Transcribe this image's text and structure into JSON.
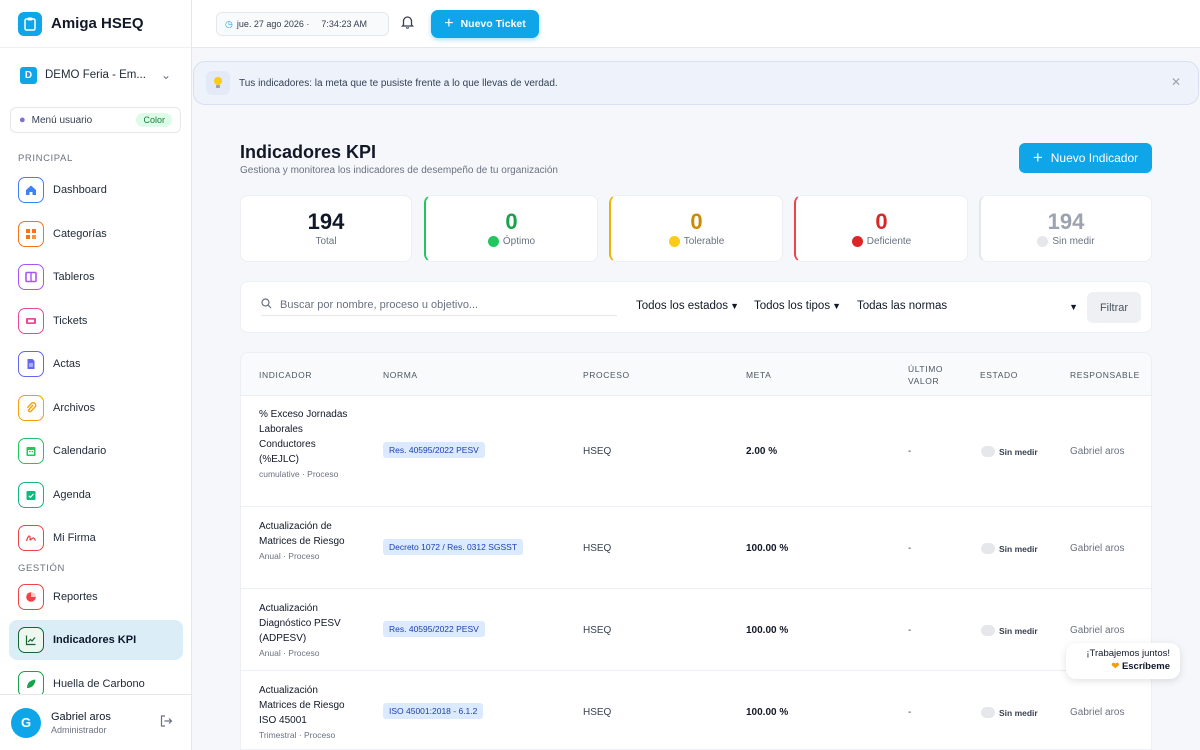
{
  "app": {
    "name": "Amiga HSEQ"
  },
  "org": {
    "badge": "D",
    "name": "DEMO Feria - Em..."
  },
  "user_menu": {
    "label": "Menú usuario",
    "badge": "Color"
  },
  "sidebar": {
    "sections": {
      "principal": "PRINCIPAL",
      "gestion": "GESTIÓN"
    },
    "items": [
      {
        "label": "Dashboard",
        "icon": "home-icon",
        "color": "#3b82f6"
      },
      {
        "label": "Categorías",
        "icon": "categories-icon",
        "color": "#f97316"
      },
      {
        "label": "Tableros",
        "icon": "board-icon",
        "color": "#a855f7"
      },
      {
        "label": "Tickets",
        "icon": "ticket-icon",
        "color": "#ec4899"
      },
      {
        "label": "Actas",
        "icon": "document-icon",
        "color": "#6366f1"
      },
      {
        "label": "Archivos",
        "icon": "paperclip-icon",
        "color": "#f59e0b"
      },
      {
        "label": "Calendario",
        "icon": "calendar-icon",
        "color": "#22c55e"
      },
      {
        "label": "Agenda",
        "icon": "agenda-icon",
        "color": "#10b981"
      },
      {
        "label": "Mi Firma",
        "icon": "signature-icon",
        "color": "#ef4444"
      },
      {
        "label": "Reportes",
        "icon": "pie-chart-icon",
        "color": "#ef4444"
      },
      {
        "label": "Indicadores KPI",
        "icon": "trend-chart-icon",
        "color": "#166534"
      },
      {
        "label": "Huella de Carbono",
        "icon": "leaf-icon",
        "color": "#16a34a"
      }
    ]
  },
  "footer_user": {
    "initial": "G",
    "name": "Gabriel aros",
    "role": "Administrador"
  },
  "topbar": {
    "date": "jue. 27 ago 2026 ·",
    "time": "7:34:23 AM",
    "new_ticket": "Nuevo Ticket"
  },
  "banner": {
    "text": "Tus indicadores: la meta que te pusiste frente a lo que llevas de verdad."
  },
  "page": {
    "title": "Indicadores KPI",
    "subtitle": "Gestiona y monitorea los indicadores de desempeño de tu organización",
    "new_indicator": "Nuevo Indicador"
  },
  "stats": [
    {
      "value": "194",
      "label": "Total",
      "color": "#111827",
      "dot": null,
      "border": "#eceff3"
    },
    {
      "value": "0",
      "label": "Óptimo",
      "color": "#16a34a",
      "dot": "#22c55e",
      "border": "#22c55e"
    },
    {
      "value": "0",
      "label": "Tolerable",
      "color": "#ca8a04",
      "dot": "#facc15",
      "border": "#eab308"
    },
    {
      "value": "0",
      "label": "Deficiente",
      "color": "#dc2626",
      "dot": "#dc2626",
      "border": "#ef4444"
    },
    {
      "value": "194",
      "label": "Sin medir",
      "color": "#9ca3af",
      "dot": "#e5e7eb",
      "border": "#e5e7eb"
    }
  ],
  "filters": {
    "search_placeholder": "Buscar por nombre, proceso u objetivo...",
    "states": "Todos los estados",
    "types": "Todos los tipos",
    "norms": "Todas las normas",
    "button": "Filtrar"
  },
  "table": {
    "headers": {
      "indicator": "INDICADOR",
      "norm": "NORMA",
      "process": "PROCESO",
      "goal": "META",
      "last_1": "ÚLTIMO",
      "last_2": "VALOR",
      "state": "ESTADO",
      "owner": "RESPONSABLE"
    },
    "rows": [
      {
        "name": "% Exceso Jornadas Laborales Conductores (%EJLC)",
        "meta": "cumulative · Proceso",
        "norm": "Res. 40595/2022 PESV",
        "process": "HSEQ",
        "goal": "2.00 %",
        "last": "-",
        "state": "Sin medir",
        "owner": "Gabriel aros"
      },
      {
        "name": "Actualización de Matrices de Riesgo",
        "meta": "Anual · Proceso",
        "norm": "Decreto 1072 / Res. 0312 SGSST",
        "process": "HSEQ",
        "goal": "100.00 %",
        "last": "-",
        "state": "Sin medir",
        "owner": "Gabriel aros"
      },
      {
        "name": "Actualización Diagnóstico PESV (ADPESV)",
        "meta": "Anual · Proceso",
        "norm": "Res. 40595/2022 PESV",
        "process": "HSEQ",
        "goal": "100.00 %",
        "last": "-",
        "state": "Sin medir",
        "owner": "Gabriel aros"
      },
      {
        "name": "Actualización Matrices de Riesgo ISO 45001",
        "meta": "Trimestral · Proceso",
        "norm": "ISO 45001:2018 - 6.1.2",
        "process": "HSEQ",
        "goal": "100.00 %",
        "last": "-",
        "state": "Sin medir",
        "owner": "Gabriel aros"
      }
    ]
  },
  "chat": {
    "line1": "¡Trabajemos juntos!",
    "line2": "Escríbeme"
  }
}
